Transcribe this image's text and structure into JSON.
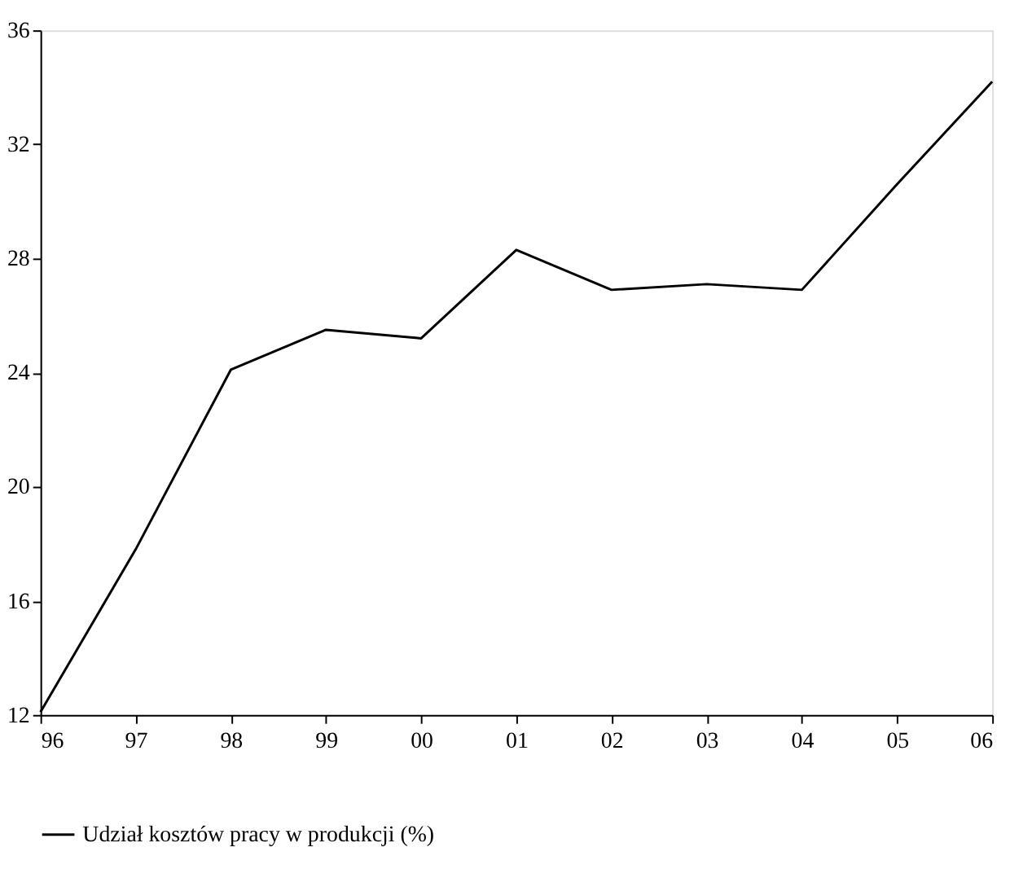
{
  "chart_data": {
    "type": "line",
    "categories": [
      "96",
      "97",
      "98",
      "99",
      "00",
      "01",
      "02",
      "03",
      "04",
      "05",
      "06"
    ],
    "series": [
      {
        "name": "Udział kosztów pracy w produkcji (%)",
        "color": "#000000",
        "values": [
          12.1,
          17.8,
          24.1,
          25.5,
          25.2,
          28.3,
          26.9,
          27.1,
          26.9,
          30.6,
          34.2
        ]
      }
    ],
    "ylim": [
      12,
      36
    ],
    "yticks": [
      12,
      16,
      20,
      24,
      28,
      32,
      36
    ],
    "grid": false,
    "legend": "bottom",
    "marker": "none",
    "line_style": "solid"
  }
}
